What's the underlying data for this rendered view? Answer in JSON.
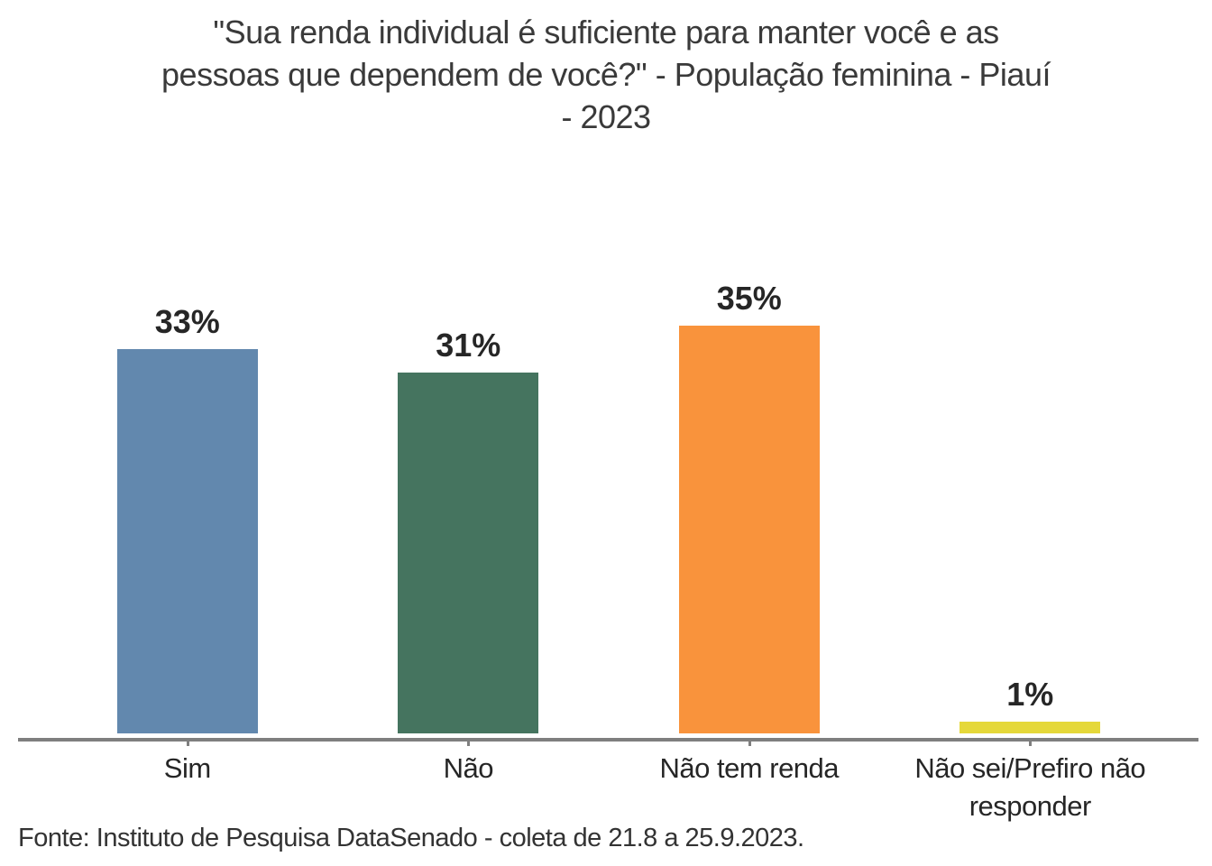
{
  "title": {
    "lines": [
      "\"Sua renda individual é suficiente para manter você e as",
      "pessoas que dependem de você?\" - População feminina - Piauí",
      "- 2023"
    ]
  },
  "footer": "Fonte: Instituto de Pesquisa DataSenado - coleta de 21.8 a 25.9.2023.",
  "colors": {
    "background": "#ffffff",
    "axis_line": "#7f7f7f",
    "title_text": "#3a3a3a",
    "label_text": "#262626",
    "value_label_text": "#262626",
    "footer_text": "#333333"
  },
  "chart_data": {
    "type": "bar",
    "title": "\"Sua renda individual é suficiente para manter você e as pessoas que dependem de você?\" - População feminina - Piauí - 2023",
    "categories": [
      "Sim",
      "Não",
      "Não tem renda",
      "Não sei/Prefiro não responder"
    ],
    "category_label_lines": [
      [
        "Sim"
      ],
      [
        "Não"
      ],
      [
        "Não tem renda"
      ],
      [
        "Não sei/Prefiro não",
        "responder"
      ]
    ],
    "values": [
      33,
      31,
      35,
      1
    ],
    "value_labels": [
      "33%",
      "31%",
      "35%",
      "1%"
    ],
    "bar_colors": [
      "#6288ae",
      "#45745f",
      "#f9933c",
      "#e5d83a"
    ],
    "unit": "%",
    "xlabel": "",
    "ylabel": "",
    "ylim": [
      0,
      35
    ],
    "grid": false,
    "legend": false,
    "yaxis_visible": false,
    "source": "Fonte: Instituto de Pesquisa DataSenado - coleta de 21.8 a 25.9.2023."
  }
}
